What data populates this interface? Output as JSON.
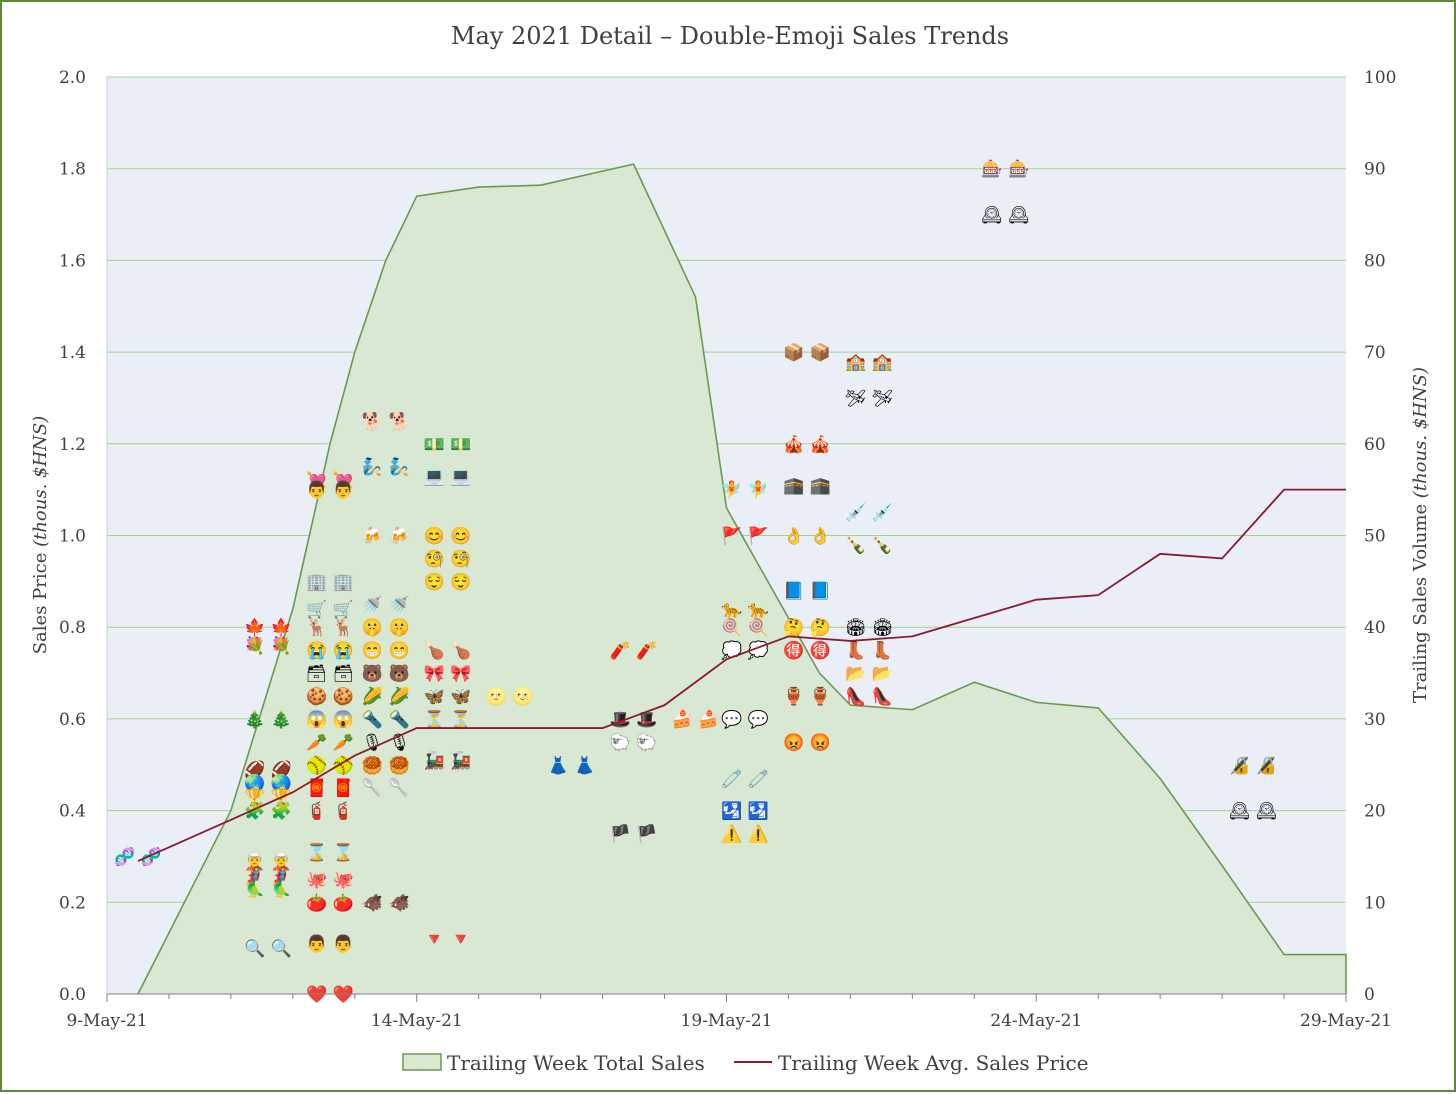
{
  "chart_data": {
    "type": "area",
    "title": "May 2021 Detail – Double-Emoji Sales Trends",
    "ylabel_main": "Sales Price ",
    "ylabel_unit": "(thous. $HNS)",
    "y2label_main": "Trailing Sales Volume ",
    "y2label_unit": "(thous. $HNS)",
    "xlim": [
      0,
      20
    ],
    "ylim": [
      0,
      2.0
    ],
    "y2lim": [
      0,
      100
    ],
    "y_ticks": [
      "0.0",
      "0.2",
      "0.4",
      "0.6",
      "0.8",
      "1.0",
      "1.2",
      "1.4",
      "1.6",
      "1.8",
      "2.0"
    ],
    "y2_ticks": [
      "0",
      "10",
      "20",
      "30",
      "40",
      "50",
      "60",
      "70",
      "80",
      "90",
      "100"
    ],
    "x_ticks": [
      {
        "x": 0,
        "label": "9-May-21"
      },
      {
        "x": 5,
        "label": "14-May-21"
      },
      {
        "x": 10,
        "label": "19-May-21"
      },
      {
        "x": 15,
        "label": "24-May-21"
      },
      {
        "x": 20,
        "label": "29-May-21"
      }
    ],
    "grid": true,
    "legend_position": "bottom",
    "colors": {
      "plot_bg": "#e9eef7",
      "grid": "#a9d18e",
      "area_fill": "#d9e8d2",
      "area_line": "#6a9a4e",
      "price_line": "#8b1a2e",
      "frame": "#5b8c3a"
    },
    "series": [
      {
        "name": "Trailing Week Total Sales",
        "axis": "right",
        "style": "area",
        "x": [
          0.5,
          2,
          3,
          3.6,
          4,
          4.5,
          5,
          6,
          7,
          8.5,
          9.5,
          10,
          11.5,
          12,
          13,
          14,
          15,
          16,
          17,
          18,
          19,
          20
        ],
        "values": [
          0,
          20,
          42,
          60,
          70,
          80,
          87,
          88,
          88.2,
          90.5,
          76,
          53,
          35,
          31.5,
          31,
          34,
          31.8,
          31.2,
          23.5,
          14,
          4.3,
          4.3
        ]
      },
      {
        "name": "Trailing Week Avg. Sales Price",
        "axis": "left",
        "style": "line",
        "x": [
          0.5,
          2,
          3,
          4,
          5,
          6,
          7,
          8,
          9,
          10,
          11,
          12,
          13,
          14,
          15,
          16,
          17,
          18,
          19,
          20
        ],
        "values": [
          0.29,
          0.38,
          0.44,
          0.52,
          0.58,
          0.58,
          0.58,
          0.58,
          0.63,
          0.73,
          0.78,
          0.77,
          0.78,
          0.82,
          0.86,
          0.87,
          0.96,
          0.95,
          1.1,
          1.1
        ]
      }
    ],
    "emoji_sales": [
      {
        "x": 0.5,
        "y": 0.3,
        "emoji": "🧬"
      },
      {
        "x": 2.6,
        "y": 0.8,
        "emoji": "🍁"
      },
      {
        "x": 2.6,
        "y": 0.76,
        "emoji": "💐"
      },
      {
        "x": 2.6,
        "y": 0.6,
        "emoji": "🎄"
      },
      {
        "x": 2.6,
        "y": 0.49,
        "emoji": "🏈"
      },
      {
        "x": 2.6,
        "y": 0.46,
        "emoji": "🌏"
      },
      {
        "x": 2.6,
        "y": 0.43,
        "emoji": "🏆"
      },
      {
        "x": 2.6,
        "y": 0.4,
        "emoji": "🧩"
      },
      {
        "x": 2.6,
        "y": 0.29,
        "emoji": "🧝"
      },
      {
        "x": 2.6,
        "y": 0.26,
        "emoji": "🦸"
      },
      {
        "x": 2.6,
        "y": 0.23,
        "emoji": "🦜"
      },
      {
        "x": 2.6,
        "y": 0.1,
        "emoji": "🔍"
      },
      {
        "x": 3.6,
        "y": 1.12,
        "emoji": "💘"
      },
      {
        "x": 3.6,
        "y": 1.1,
        "emoji": "👨"
      },
      {
        "x": 3.6,
        "y": 0.9,
        "emoji": "🏢"
      },
      {
        "x": 3.6,
        "y": 0.84,
        "emoji": "🛒"
      },
      {
        "x": 3.6,
        "y": 0.8,
        "emoji": "🦌"
      },
      {
        "x": 3.6,
        "y": 0.75,
        "emoji": "😭"
      },
      {
        "x": 3.6,
        "y": 0.7,
        "emoji": "🗃"
      },
      {
        "x": 3.6,
        "y": 0.65,
        "emoji": "🍪"
      },
      {
        "x": 3.6,
        "y": 0.6,
        "emoji": "😱"
      },
      {
        "x": 3.6,
        "y": 0.55,
        "emoji": "🥕"
      },
      {
        "x": 3.6,
        "y": 0.5,
        "emoji": "🥎"
      },
      {
        "x": 3.6,
        "y": 0.45,
        "emoji": "🧧"
      },
      {
        "x": 3.6,
        "y": 0.4,
        "emoji": "🧯"
      },
      {
        "x": 3.6,
        "y": 0.31,
        "emoji": "⌛"
      },
      {
        "x": 3.6,
        "y": 0.25,
        "emoji": "🐙"
      },
      {
        "x": 3.6,
        "y": 0.2,
        "emoji": "🍅"
      },
      {
        "x": 3.6,
        "y": 0.11,
        "emoji": "👨"
      },
      {
        "x": 3.6,
        "y": 0.0,
        "emoji": "❤️"
      },
      {
        "x": 4.5,
        "y": 1.25,
        "emoji": "🐕"
      },
      {
        "x": 4.5,
        "y": 1.15,
        "emoji": "🧞"
      },
      {
        "x": 4.5,
        "y": 1.0,
        "emoji": "🍻"
      },
      {
        "x": 4.5,
        "y": 0.85,
        "emoji": "🚿"
      },
      {
        "x": 4.5,
        "y": 0.8,
        "emoji": "🤫"
      },
      {
        "x": 4.5,
        "y": 0.75,
        "emoji": "😁"
      },
      {
        "x": 4.5,
        "y": 0.7,
        "emoji": "🐻"
      },
      {
        "x": 4.5,
        "y": 0.65,
        "emoji": "🌽"
      },
      {
        "x": 4.5,
        "y": 0.6,
        "emoji": "🔦"
      },
      {
        "x": 4.5,
        "y": 0.55,
        "emoji": "🎙"
      },
      {
        "x": 4.5,
        "y": 0.5,
        "emoji": "🥮"
      },
      {
        "x": 4.5,
        "y": 0.45,
        "emoji": "🥄"
      },
      {
        "x": 4.5,
        "y": 0.2,
        "emoji": "🐗"
      },
      {
        "x": 5.5,
        "y": 1.2,
        "emoji": "💵"
      },
      {
        "x": 5.5,
        "y": 1.13,
        "emoji": "💻"
      },
      {
        "x": 5.5,
        "y": 1.0,
        "emoji": "😊"
      },
      {
        "x": 5.5,
        "y": 0.95,
        "emoji": "🧐"
      },
      {
        "x": 5.5,
        "y": 0.9,
        "emoji": "😌"
      },
      {
        "x": 5.5,
        "y": 0.75,
        "emoji": "🍗"
      },
      {
        "x": 5.5,
        "y": 0.7,
        "emoji": "🎀"
      },
      {
        "x": 5.5,
        "y": 0.65,
        "emoji": "🦋"
      },
      {
        "x": 5.5,
        "y": 0.6,
        "emoji": "⏳"
      },
      {
        "x": 5.5,
        "y": 0.51,
        "emoji": "🚂"
      },
      {
        "x": 5.5,
        "y": 0.12,
        "emoji": "🔻"
      },
      {
        "x": 6.5,
        "y": 0.65,
        "emoji": "🌝"
      },
      {
        "x": 7.5,
        "y": 0.5,
        "emoji": "👗"
      },
      {
        "x": 8.5,
        "y": 0.75,
        "emoji": "🧨"
      },
      {
        "x": 8.5,
        "y": 0.6,
        "emoji": "🎩"
      },
      {
        "x": 8.5,
        "y": 0.55,
        "emoji": "🐑"
      },
      {
        "x": 8.5,
        "y": 0.35,
        "emoji": "🏴"
      },
      {
        "x": 9.5,
        "y": 0.6,
        "emoji": "🍰"
      },
      {
        "x": 10.3,
        "y": 1.1,
        "emoji": "🧚"
      },
      {
        "x": 10.3,
        "y": 1.0,
        "emoji": "🚩"
      },
      {
        "x": 10.3,
        "y": 0.84,
        "emoji": "🐆"
      },
      {
        "x": 10.3,
        "y": 0.8,
        "emoji": "🍭"
      },
      {
        "x": 10.3,
        "y": 0.75,
        "emoji": "💭"
      },
      {
        "x": 10.3,
        "y": 0.6,
        "emoji": "💬"
      },
      {
        "x": 10.3,
        "y": 0.47,
        "emoji": "🧷"
      },
      {
        "x": 10.3,
        "y": 0.4,
        "emoji": "🛂"
      },
      {
        "x": 10.3,
        "y": 0.35,
        "emoji": "⚠️"
      },
      {
        "x": 11.3,
        "y": 1.4,
        "emoji": "📦"
      },
      {
        "x": 11.3,
        "y": 1.2,
        "emoji": "🎪"
      },
      {
        "x": 11.3,
        "y": 1.11,
        "emoji": "🕋"
      },
      {
        "x": 11.3,
        "y": 1.0,
        "emoji": "👌"
      },
      {
        "x": 11.3,
        "y": 0.88,
        "emoji": "📘"
      },
      {
        "x": 11.3,
        "y": 0.8,
        "emoji": "🤔"
      },
      {
        "x": 11.3,
        "y": 0.75,
        "emoji": "🉐"
      },
      {
        "x": 11.3,
        "y": 0.65,
        "emoji": "🏺"
      },
      {
        "x": 11.3,
        "y": 0.55,
        "emoji": "😡"
      },
      {
        "x": 12.3,
        "y": 1.38,
        "emoji": "🏫"
      },
      {
        "x": 12.3,
        "y": 1.3,
        "emoji": "🛩"
      },
      {
        "x": 12.3,
        "y": 1.05,
        "emoji": "💉"
      },
      {
        "x": 12.3,
        "y": 0.98,
        "emoji": "🍾"
      },
      {
        "x": 12.3,
        "y": 0.8,
        "emoji": "🏟"
      },
      {
        "x": 12.3,
        "y": 0.75,
        "emoji": "👢"
      },
      {
        "x": 12.3,
        "y": 0.7,
        "emoji": "📂"
      },
      {
        "x": 12.3,
        "y": 0.65,
        "emoji": "👠"
      },
      {
        "x": 14.5,
        "y": 1.8,
        "emoji": "🎰"
      },
      {
        "x": 14.5,
        "y": 1.7,
        "emoji": "🕰"
      },
      {
        "x": 18.5,
        "y": 0.5,
        "emoji": "🔏"
      },
      {
        "x": 18.5,
        "y": 0.4,
        "emoji": "🕰"
      }
    ]
  }
}
